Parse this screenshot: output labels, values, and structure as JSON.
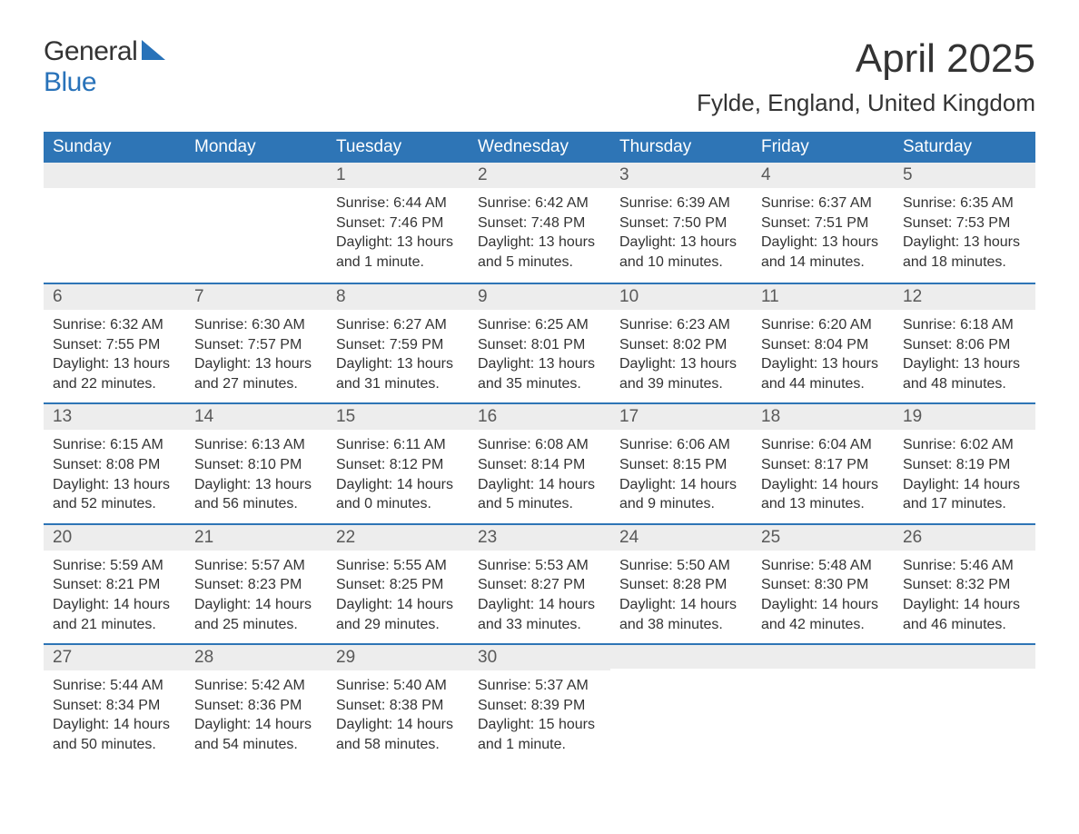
{
  "logo": {
    "word1": "General",
    "word2": "Blue",
    "brand_color": "#2872b9"
  },
  "title": "April 2025",
  "location": "Fylde, England, United Kingdom",
  "colors": {
    "header_bg": "#2e75b6",
    "header_text": "#ffffff",
    "daybar_bg": "#ededed",
    "daybar_border": "#2e75b6",
    "daynum_text": "#595959",
    "body_text": "#333333",
    "page_bg": "#ffffff"
  },
  "typography": {
    "title_fontsize": 44,
    "location_fontsize": 26,
    "weekday_fontsize": 19,
    "daynum_fontsize": 19,
    "body_fontsize": 16,
    "font_family": "Arial"
  },
  "weekdays": [
    "Sunday",
    "Monday",
    "Tuesday",
    "Wednesday",
    "Thursday",
    "Friday",
    "Saturday"
  ],
  "weeks": [
    [
      null,
      null,
      {
        "day": "1",
        "sunrise": "Sunrise: 6:44 AM",
        "sunset": "Sunset: 7:46 PM",
        "daylight": "Daylight: 13 hours and 1 minute."
      },
      {
        "day": "2",
        "sunrise": "Sunrise: 6:42 AM",
        "sunset": "Sunset: 7:48 PM",
        "daylight": "Daylight: 13 hours and 5 minutes."
      },
      {
        "day": "3",
        "sunrise": "Sunrise: 6:39 AM",
        "sunset": "Sunset: 7:50 PM",
        "daylight": "Daylight: 13 hours and 10 minutes."
      },
      {
        "day": "4",
        "sunrise": "Sunrise: 6:37 AM",
        "sunset": "Sunset: 7:51 PM",
        "daylight": "Daylight: 13 hours and 14 minutes."
      },
      {
        "day": "5",
        "sunrise": "Sunrise: 6:35 AM",
        "sunset": "Sunset: 7:53 PM",
        "daylight": "Daylight: 13 hours and 18 minutes."
      }
    ],
    [
      {
        "day": "6",
        "sunrise": "Sunrise: 6:32 AM",
        "sunset": "Sunset: 7:55 PM",
        "daylight": "Daylight: 13 hours and 22 minutes."
      },
      {
        "day": "7",
        "sunrise": "Sunrise: 6:30 AM",
        "sunset": "Sunset: 7:57 PM",
        "daylight": "Daylight: 13 hours and 27 minutes."
      },
      {
        "day": "8",
        "sunrise": "Sunrise: 6:27 AM",
        "sunset": "Sunset: 7:59 PM",
        "daylight": "Daylight: 13 hours and 31 minutes."
      },
      {
        "day": "9",
        "sunrise": "Sunrise: 6:25 AM",
        "sunset": "Sunset: 8:01 PM",
        "daylight": "Daylight: 13 hours and 35 minutes."
      },
      {
        "day": "10",
        "sunrise": "Sunrise: 6:23 AM",
        "sunset": "Sunset: 8:02 PM",
        "daylight": "Daylight: 13 hours and 39 minutes."
      },
      {
        "day": "11",
        "sunrise": "Sunrise: 6:20 AM",
        "sunset": "Sunset: 8:04 PM",
        "daylight": "Daylight: 13 hours and 44 minutes."
      },
      {
        "day": "12",
        "sunrise": "Sunrise: 6:18 AM",
        "sunset": "Sunset: 8:06 PM",
        "daylight": "Daylight: 13 hours and 48 minutes."
      }
    ],
    [
      {
        "day": "13",
        "sunrise": "Sunrise: 6:15 AM",
        "sunset": "Sunset: 8:08 PM",
        "daylight": "Daylight: 13 hours and 52 minutes."
      },
      {
        "day": "14",
        "sunrise": "Sunrise: 6:13 AM",
        "sunset": "Sunset: 8:10 PM",
        "daylight": "Daylight: 13 hours and 56 minutes."
      },
      {
        "day": "15",
        "sunrise": "Sunrise: 6:11 AM",
        "sunset": "Sunset: 8:12 PM",
        "daylight": "Daylight: 14 hours and 0 minutes."
      },
      {
        "day": "16",
        "sunrise": "Sunrise: 6:08 AM",
        "sunset": "Sunset: 8:14 PM",
        "daylight": "Daylight: 14 hours and 5 minutes."
      },
      {
        "day": "17",
        "sunrise": "Sunrise: 6:06 AM",
        "sunset": "Sunset: 8:15 PM",
        "daylight": "Daylight: 14 hours and 9 minutes."
      },
      {
        "day": "18",
        "sunrise": "Sunrise: 6:04 AM",
        "sunset": "Sunset: 8:17 PM",
        "daylight": "Daylight: 14 hours and 13 minutes."
      },
      {
        "day": "19",
        "sunrise": "Sunrise: 6:02 AM",
        "sunset": "Sunset: 8:19 PM",
        "daylight": "Daylight: 14 hours and 17 minutes."
      }
    ],
    [
      {
        "day": "20",
        "sunrise": "Sunrise: 5:59 AM",
        "sunset": "Sunset: 8:21 PM",
        "daylight": "Daylight: 14 hours and 21 minutes."
      },
      {
        "day": "21",
        "sunrise": "Sunrise: 5:57 AM",
        "sunset": "Sunset: 8:23 PM",
        "daylight": "Daylight: 14 hours and 25 minutes."
      },
      {
        "day": "22",
        "sunrise": "Sunrise: 5:55 AM",
        "sunset": "Sunset: 8:25 PM",
        "daylight": "Daylight: 14 hours and 29 minutes."
      },
      {
        "day": "23",
        "sunrise": "Sunrise: 5:53 AM",
        "sunset": "Sunset: 8:27 PM",
        "daylight": "Daylight: 14 hours and 33 minutes."
      },
      {
        "day": "24",
        "sunrise": "Sunrise: 5:50 AM",
        "sunset": "Sunset: 8:28 PM",
        "daylight": "Daylight: 14 hours and 38 minutes."
      },
      {
        "day": "25",
        "sunrise": "Sunrise: 5:48 AM",
        "sunset": "Sunset: 8:30 PM",
        "daylight": "Daylight: 14 hours and 42 minutes."
      },
      {
        "day": "26",
        "sunrise": "Sunrise: 5:46 AM",
        "sunset": "Sunset: 8:32 PM",
        "daylight": "Daylight: 14 hours and 46 minutes."
      }
    ],
    [
      {
        "day": "27",
        "sunrise": "Sunrise: 5:44 AM",
        "sunset": "Sunset: 8:34 PM",
        "daylight": "Daylight: 14 hours and 50 minutes."
      },
      {
        "day": "28",
        "sunrise": "Sunrise: 5:42 AM",
        "sunset": "Sunset: 8:36 PM",
        "daylight": "Daylight: 14 hours and 54 minutes."
      },
      {
        "day": "29",
        "sunrise": "Sunrise: 5:40 AM",
        "sunset": "Sunset: 8:38 PM",
        "daylight": "Daylight: 14 hours and 58 minutes."
      },
      {
        "day": "30",
        "sunrise": "Sunrise: 5:37 AM",
        "sunset": "Sunset: 8:39 PM",
        "daylight": "Daylight: 15 hours and 1 minute."
      },
      null,
      null,
      null
    ]
  ]
}
